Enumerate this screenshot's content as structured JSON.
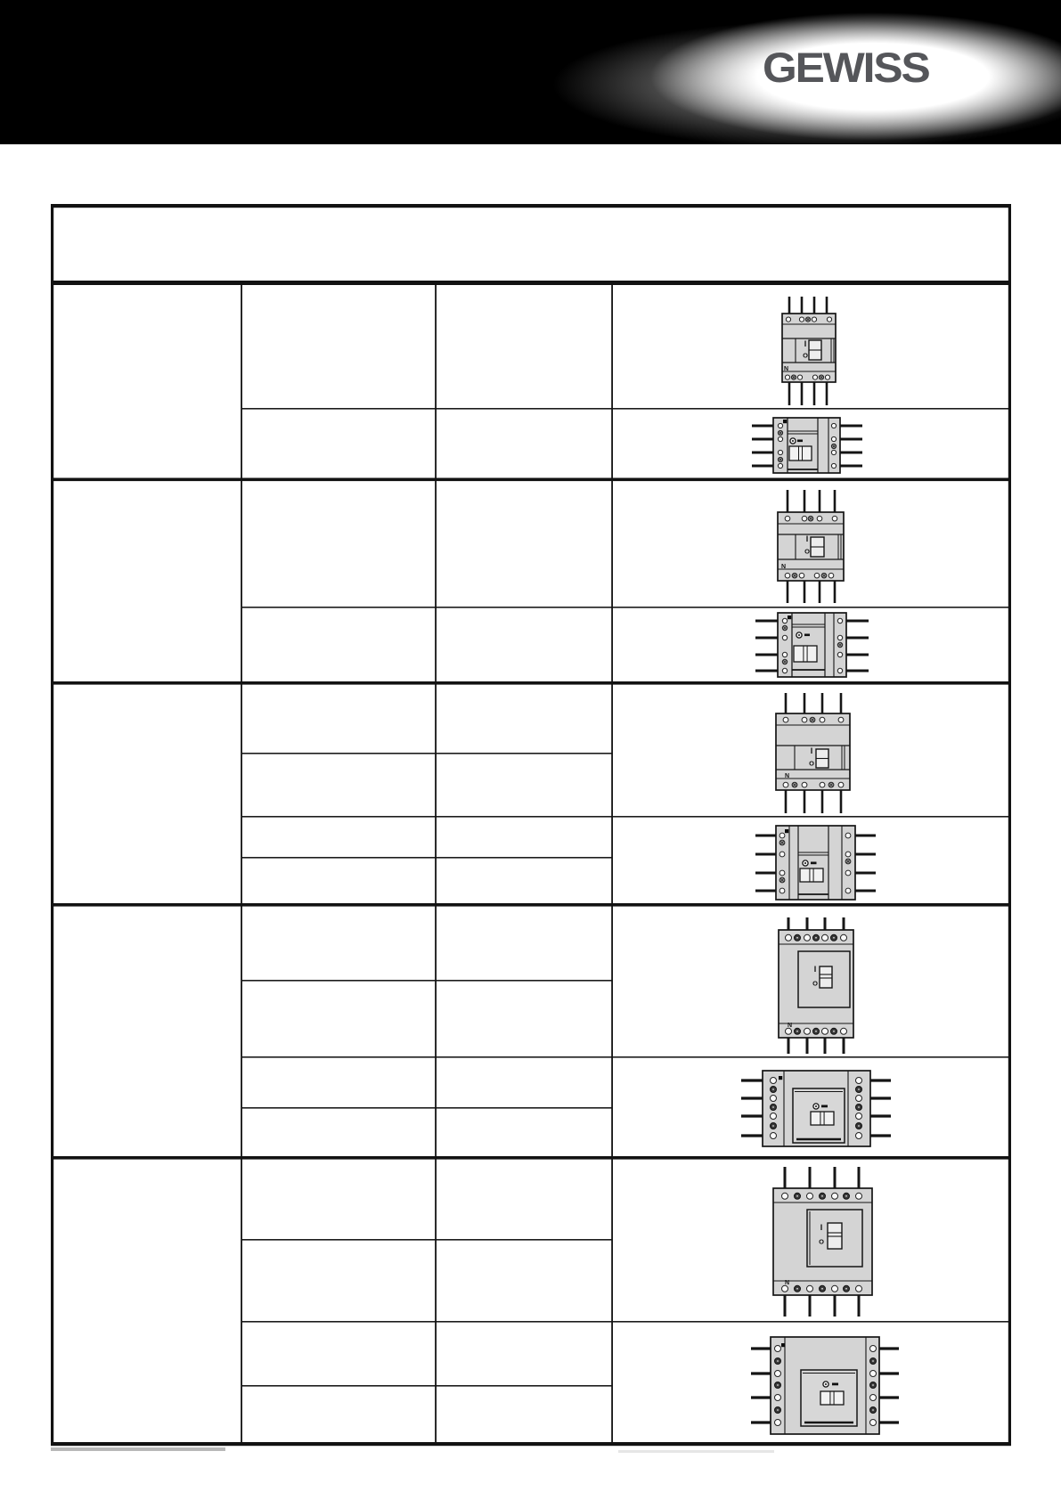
{
  "header": {
    "brand": "GEWISS"
  },
  "colors": {
    "header_band": "#000000",
    "brand_text": "#55565a",
    "table_line": "#121212",
    "figure_body_fill": "#d4d4d4"
  },
  "figure_labels": {
    "neutral": "N",
    "on": "I",
    "off": "O"
  },
  "table": {
    "columns": 4,
    "header_rows": 1,
    "row_groups": 5
  },
  "figures": [
    {
      "id": "size1-front",
      "view": "front",
      "description": "4-pole moulded-case circuit breaker, frame size 1, front view"
    },
    {
      "id": "size1-side",
      "view": "side",
      "description": "4-pole moulded-case circuit breaker, frame size 1, side view"
    },
    {
      "id": "size2-front",
      "view": "front",
      "description": "4-pole moulded-case circuit breaker, frame size 2, front view"
    },
    {
      "id": "size2-side",
      "view": "side",
      "description": "4-pole moulded-case circuit breaker, frame size 2, side view"
    },
    {
      "id": "size3-front",
      "view": "front",
      "description": "4-pole moulded-case circuit breaker, frame size 3, front view"
    },
    {
      "id": "size3-side",
      "view": "side",
      "description": "4-pole moulded-case circuit breaker, frame size 3, side view"
    },
    {
      "id": "size4-front",
      "view": "front",
      "description": "4-pole moulded-case circuit breaker, frame size 4, front view"
    },
    {
      "id": "size4-side",
      "view": "side",
      "description": "4-pole moulded-case circuit breaker, frame size 4, side view"
    },
    {
      "id": "size5-front",
      "view": "front",
      "description": "4-pole moulded-case circuit breaker, frame size 5, front view"
    },
    {
      "id": "size5-side",
      "view": "side",
      "description": "4-pole moulded-case circuit breaker, frame size 5, side view"
    }
  ]
}
